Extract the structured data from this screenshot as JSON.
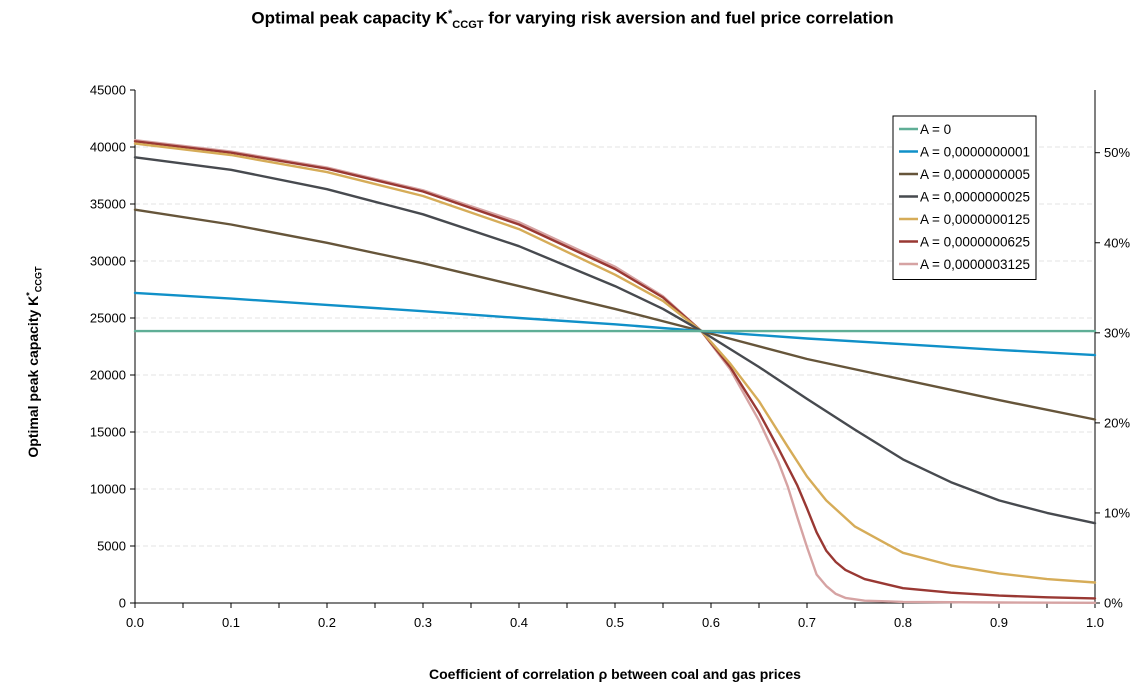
{
  "chart_data": {
    "type": "line",
    "title": {
      "prefix": "Optimal peak capacity K",
      "sup": "*",
      "sub": "CCGT",
      "suffix": " for varying risk aversion and fuel price correlation"
    },
    "xlabel": "Coefficient of correlation ρ between coal and gas prices",
    "ylabel": {
      "prefix": "Optimal peak capacity K",
      "sup": "*",
      "sub": "CCGT"
    },
    "xlim": [
      0,
      1
    ],
    "ylim": [
      0,
      45000
    ],
    "x_ticks": [
      "0.0",
      "0.1",
      "0.2",
      "0.3",
      "0.4",
      "0.5",
      "0.6",
      "0.7",
      "0.8",
      "0.9",
      "1.0"
    ],
    "y_ticks": [
      "0",
      "5000",
      "10000",
      "15000",
      "20000",
      "25000",
      "30000",
      "35000",
      "40000",
      "45000"
    ],
    "y2_ticks": [
      {
        "value": 0,
        "label": "0%"
      },
      {
        "value": 7900,
        "label": "10%"
      },
      {
        "value": 15800,
        "label": "20%"
      },
      {
        "value": 23700,
        "label": "30%"
      },
      {
        "value": 31600,
        "label": "40%"
      },
      {
        "value": 39500,
        "label": "50%"
      }
    ],
    "grid": "horizontal",
    "legend_position": "top-right",
    "series": [
      {
        "name": "A = 0",
        "color": "#5fae96",
        "x": [
          0,
          0.2,
          0.4,
          0.6,
          0.8,
          1.0
        ],
        "y": [
          23850,
          23850,
          23850,
          23850,
          23850,
          23850
        ]
      },
      {
        "name": "A = 0,0000000001",
        "color": "#1090c8",
        "x": [
          0,
          0.1,
          0.2,
          0.3,
          0.4,
          0.5,
          0.59,
          0.7,
          0.8,
          0.9,
          1.0
        ],
        "y": [
          27200,
          26700,
          26150,
          25600,
          25000,
          24450,
          23850,
          23200,
          22700,
          22200,
          21750
        ]
      },
      {
        "name": "A = 0,0000000005",
        "color": "#66553a",
        "x": [
          0,
          0.1,
          0.2,
          0.3,
          0.4,
          0.5,
          0.59,
          0.7,
          0.8,
          0.9,
          1.0
        ],
        "y": [
          34500,
          33200,
          31600,
          29800,
          27800,
          25800,
          23850,
          21400,
          19600,
          17800,
          16100
        ]
      },
      {
        "name": "A = 0,0000000025",
        "color": "#474a4f",
        "x": [
          0,
          0.1,
          0.2,
          0.3,
          0.4,
          0.5,
          0.55,
          0.59,
          0.65,
          0.7,
          0.75,
          0.8,
          0.85,
          0.9,
          0.95,
          1.0
        ],
        "y": [
          39100,
          38000,
          36300,
          34100,
          31300,
          27800,
          25800,
          23850,
          20700,
          17900,
          15200,
          12600,
          10600,
          9000,
          7900,
          7000
        ]
      },
      {
        "name": "A = 0,0000000125",
        "color": "#d6ac58",
        "x": [
          0,
          0.1,
          0.2,
          0.3,
          0.4,
          0.5,
          0.55,
          0.59,
          0.62,
          0.65,
          0.68,
          0.7,
          0.72,
          0.75,
          0.8,
          0.85,
          0.9,
          0.95,
          1.0
        ],
        "y": [
          40300,
          39300,
          37800,
          35700,
          32800,
          28800,
          26500,
          23850,
          21000,
          17700,
          13700,
          11100,
          9000,
          6700,
          4400,
          3300,
          2600,
          2100,
          1800
        ]
      },
      {
        "name": "A = 0,0000000625",
        "color": "#993833",
        "x": [
          0,
          0.1,
          0.2,
          0.3,
          0.4,
          0.5,
          0.55,
          0.59,
          0.62,
          0.65,
          0.67,
          0.69,
          0.7,
          0.71,
          0.72,
          0.73,
          0.74,
          0.76,
          0.8,
          0.85,
          0.9,
          0.95,
          1.0
        ],
        "y": [
          40500,
          39500,
          38100,
          36100,
          33200,
          29300,
          26800,
          23850,
          20700,
          16700,
          13600,
          10300,
          8300,
          6200,
          4600,
          3600,
          2900,
          2100,
          1300,
          900,
          650,
          500,
          400
        ]
      },
      {
        "name": "A = 0,0000003125",
        "color": "#d6a3a3",
        "x": [
          0,
          0.1,
          0.2,
          0.3,
          0.4,
          0.5,
          0.55,
          0.59,
          0.62,
          0.65,
          0.67,
          0.68,
          0.69,
          0.7,
          0.71,
          0.72,
          0.73,
          0.74,
          0.76,
          0.8,
          0.9,
          1.0
        ],
        "y": [
          40600,
          39600,
          38200,
          36200,
          33400,
          29500,
          26900,
          23850,
          20500,
          16000,
          12400,
          10200,
          7500,
          4900,
          2500,
          1500,
          800,
          450,
          200,
          100,
          40,
          20
        ]
      }
    ]
  }
}
